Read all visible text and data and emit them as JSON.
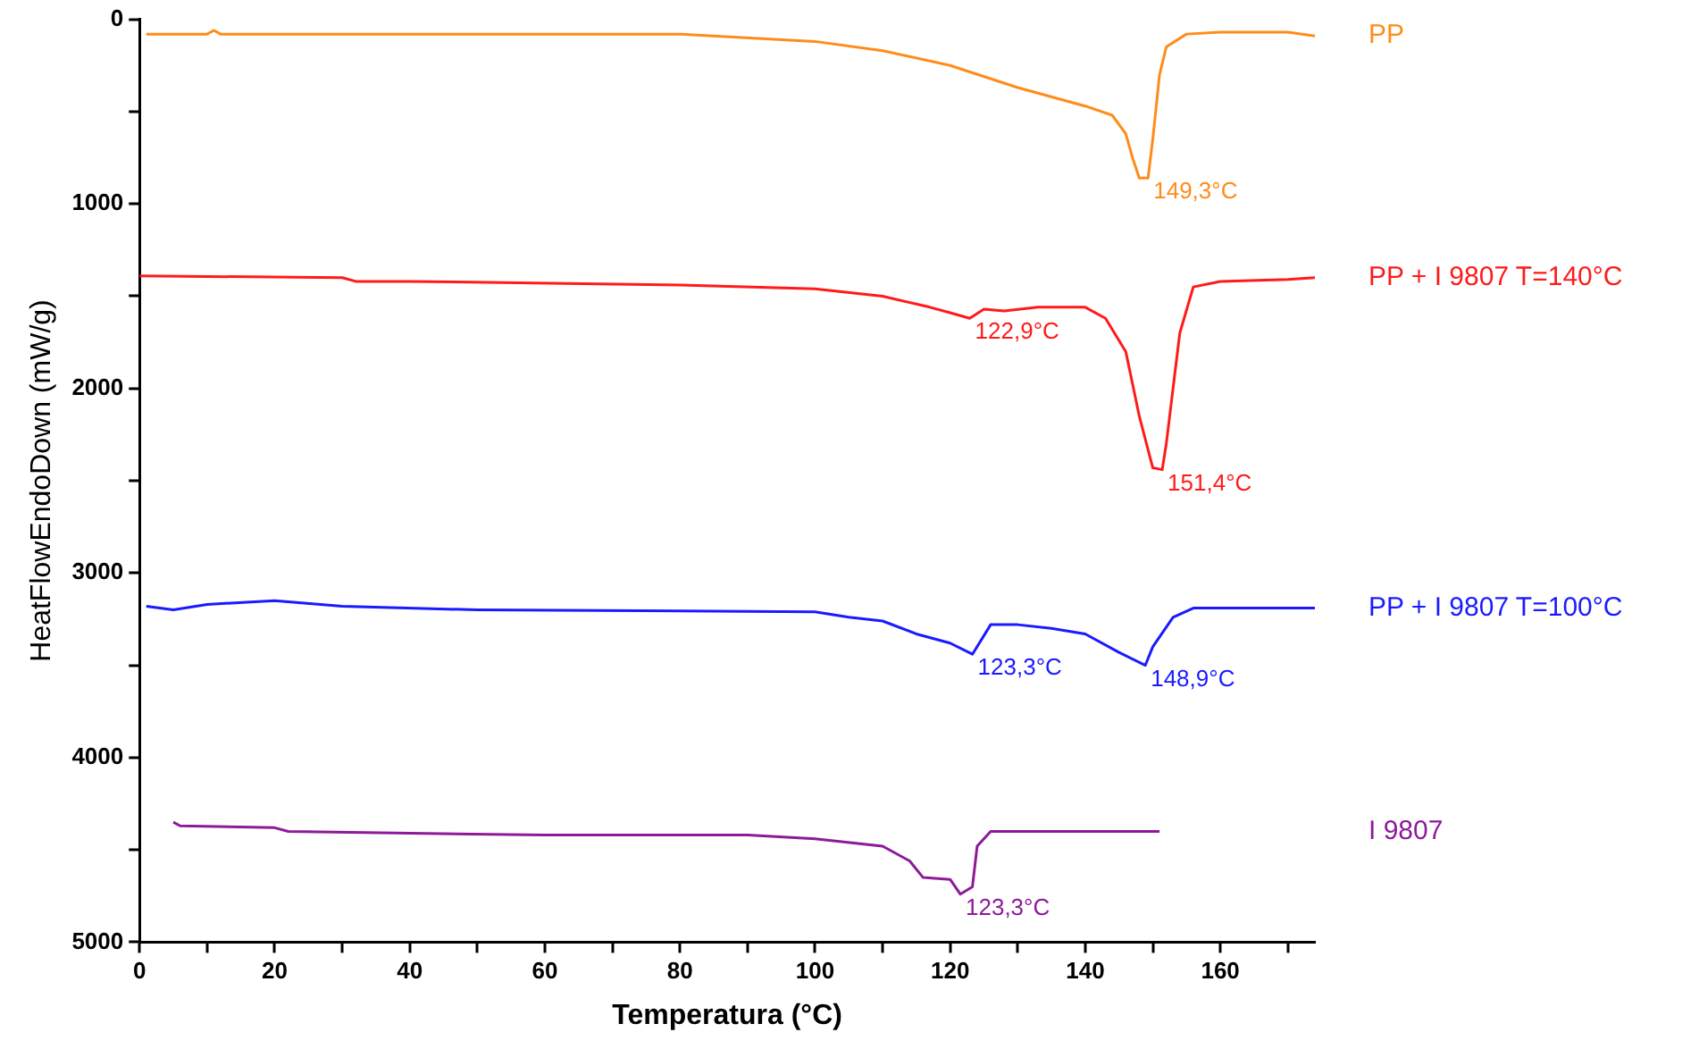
{
  "chart_data": {
    "type": "line",
    "xlabel": "Temperatura (°C)",
    "ylabel": "HeatFlowEndoDown (mW/g)",
    "xlim": [
      0,
      174
    ],
    "xticks": [
      0,
      {
        "value": 10,
        "label": null
      },
      20,
      {
        "value": 30,
        "label": null
      },
      40,
      {
        "value": 50,
        "label": null
      },
      60,
      {
        "value": 70,
        "label": null
      },
      80,
      {
        "value": 90,
        "label": null
      },
      100,
      {
        "value": 110,
        "label": null
      },
      120,
      {
        "value": 130,
        "label": null
      },
      140,
      {
        "value": 150,
        "label": null
      },
      160,
      {
        "value": 170,
        "label": null
      }
    ],
    "ylim": [
      5000,
      0
    ],
    "yticks": [
      0,
      {
        "value": 500,
        "label": null
      },
      1000,
      {
        "value": 1500,
        "label": null
      },
      2000,
      {
        "value": 2500,
        "label": null
      },
      3000,
      {
        "value": 3500,
        "label": null
      },
      4000,
      {
        "value": 4500,
        "label": null
      },
      5000
    ],
    "grid": false,
    "legend": false,
    "series": [
      {
        "name": "PP",
        "color": "#ff8c1a",
        "x": [
          1,
          10,
          11,
          12,
          80,
          100,
          110,
          120,
          130,
          140,
          144,
          146,
          147,
          148,
          149.3,
          150,
          151,
          152,
          155,
          160,
          170,
          174
        ],
        "values": [
          80,
          80,
          60,
          80,
          80,
          120,
          170,
          250,
          370,
          470,
          520,
          620,
          750,
          860,
          860,
          650,
          300,
          150,
          80,
          70,
          70,
          90
        ]
      },
      {
        "name": "PP + I 9807 T=140°C",
        "color": "#ff1a1a",
        "x": [
          0,
          30,
          32,
          40,
          80,
          100,
          110,
          117,
          120,
          122.9,
          125,
          128,
          133,
          140,
          143,
          146,
          148,
          150,
          151.4,
          152,
          154,
          156,
          160,
          170,
          174
        ],
        "values": [
          1390,
          1400,
          1420,
          1420,
          1440,
          1460,
          1500,
          1560,
          1590,
          1620,
          1570,
          1580,
          1560,
          1560,
          1620,
          1800,
          2150,
          2430,
          2440,
          2300,
          1700,
          1450,
          1420,
          1410,
          1400
        ]
      },
      {
        "name": "PP + I 9807 T=100°C",
        "color": "#1a1aff",
        "x": [
          1,
          5,
          10,
          20,
          30,
          50,
          100,
          105,
          110,
          115,
          120,
          123.3,
          126,
          130,
          135,
          140,
          145,
          148.9,
          150,
          153,
          156,
          174
        ],
        "values": [
          3180,
          3200,
          3170,
          3150,
          3180,
          3200,
          3210,
          3240,
          3260,
          3330,
          3380,
          3440,
          3280,
          3280,
          3300,
          3330,
          3430,
          3500,
          3400,
          3240,
          3190,
          3190
        ]
      },
      {
        "name": "I 9807",
        "color": "#8c1a99",
        "x": [
          5,
          6,
          20,
          22,
          60,
          90,
          100,
          110,
          114,
          116,
          120,
          121.5,
          123.3,
          124,
          126,
          151
        ],
        "values": [
          4350,
          4370,
          4380,
          4400,
          4420,
          4420,
          4440,
          4480,
          4560,
          4650,
          4660,
          4740,
          4700,
          4480,
          4400,
          4400
        ]
      }
    ],
    "annotations": [
      {
        "text": "149,3°C",
        "x": 149.3,
        "y": 860
      },
      {
        "text": "122,9°C",
        "x": 122.9,
        "y": 1620
      },
      {
        "text": "151,4°C",
        "x": 151.4,
        "y": 2440
      },
      {
        "text": "123,3°C",
        "x": 123.3,
        "y": 3440
      },
      {
        "text": "148,9°C",
        "x": 148.9,
        "y": 3500
      },
      {
        "text": "123,3°C",
        "x": 121.5,
        "y": 4740
      }
    ]
  }
}
